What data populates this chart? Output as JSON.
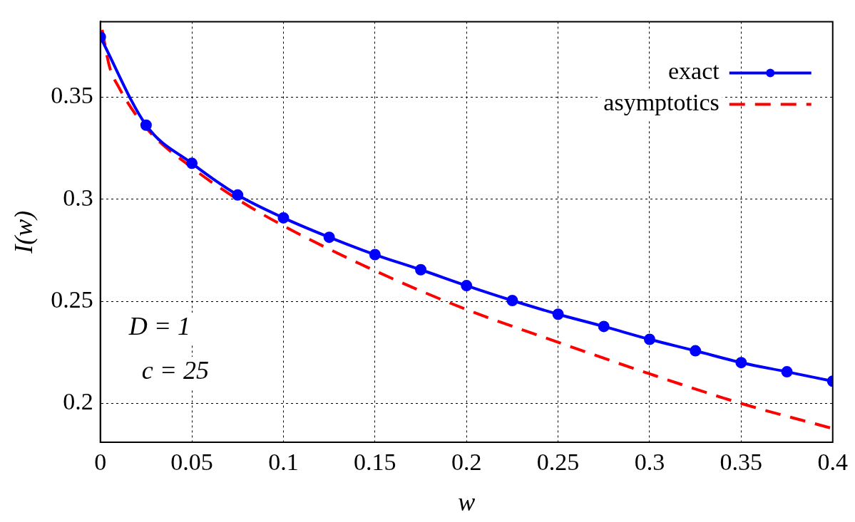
{
  "chart_data": {
    "type": "line",
    "xlabel": "w",
    "ylabel": "I(w)",
    "xlim": [
      0,
      0.4
    ],
    "xticks": [
      0,
      0.05,
      0.1,
      0.15,
      0.2,
      0.25,
      0.3,
      0.35,
      0.4
    ],
    "ylim": [
      0.181,
      0.387
    ],
    "yticks": [
      0.2,
      0.25,
      0.3,
      0.35
    ],
    "grid": true,
    "legend": "top right",
    "annotations": [
      "D = 1",
      "c = 25"
    ],
    "series": [
      {
        "name": "exact",
        "color": "#0000ff",
        "marker": "circle",
        "line_style": "solid",
        "x": [
          0,
          0.025,
          0.05,
          0.075,
          0.1,
          0.125,
          0.15,
          0.175,
          0.2,
          0.225,
          0.25,
          0.275,
          0.3,
          0.325,
          0.35,
          0.375,
          0.4
        ],
        "values": [
          0.3795,
          0.3363,
          0.3176,
          0.3021,
          0.2909,
          0.2814,
          0.2729,
          0.2655,
          0.2577,
          0.2504,
          0.2437,
          0.2377,
          0.2314,
          0.2258,
          0.22,
          0.2155,
          0.2109
        ]
      },
      {
        "name": "asymptotics",
        "color": "#ff0000",
        "marker": "none",
        "line_style": "dashed",
        "x": [
          0.001,
          0.005,
          0.01,
          0.025,
          0.05,
          0.075,
          0.1,
          0.15,
          0.2,
          0.25,
          0.3,
          0.35,
          0.4
        ],
        "values": [
          0.383,
          0.365,
          0.355,
          0.335,
          0.3155,
          0.3,
          0.287,
          0.265,
          0.246,
          0.23,
          0.2145,
          0.2,
          0.1877
        ]
      }
    ]
  }
}
